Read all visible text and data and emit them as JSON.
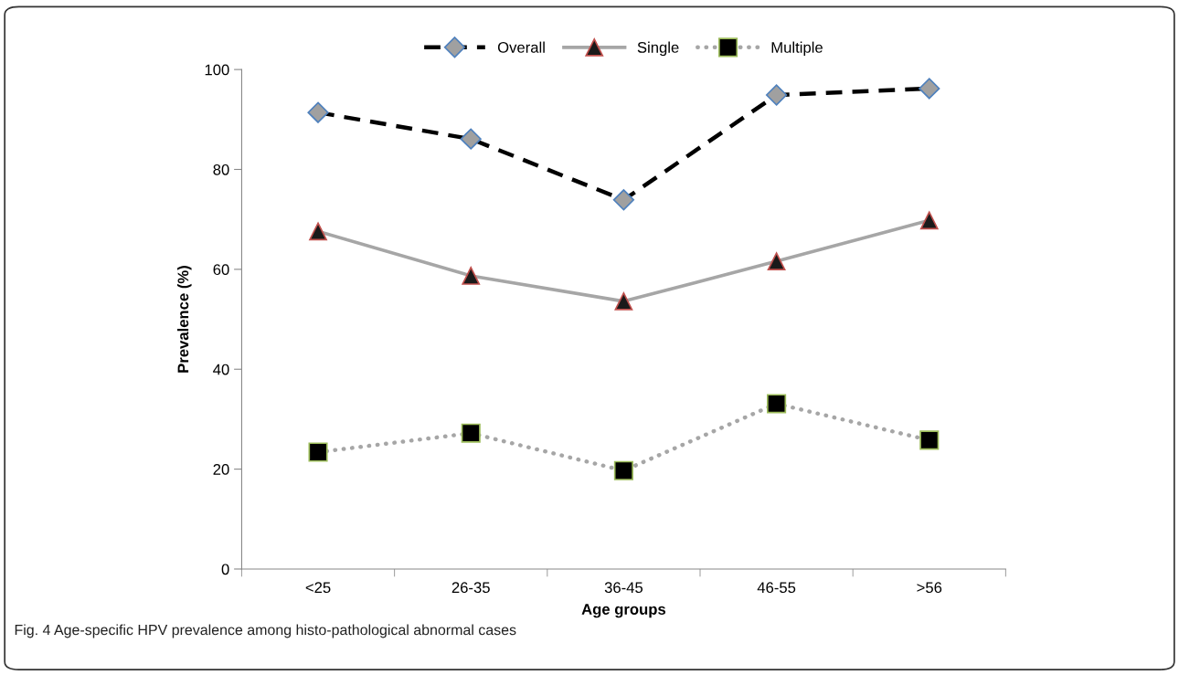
{
  "chart_data": {
    "type": "line",
    "xlabel": "Age groups",
    "ylabel": "Prevalence (%)",
    "categories": [
      "<25",
      "26-35",
      "36-45",
      "46-55",
      ">56"
    ],
    "series": [
      {
        "name": "Overall",
        "color": "#000000",
        "values": [
          91.4,
          86.1,
          73.9,
          94.9,
          96.2
        ],
        "marker": "diamond",
        "line_style": "dashed"
      },
      {
        "name": "Single",
        "color": "#a6a6a6",
        "values": [
          67.6,
          58.7,
          53.6,
          61.6,
          69.8
        ],
        "marker": "triangle",
        "line_style": "solid"
      },
      {
        "name": "Multiple",
        "color": "#a6a6a6",
        "values": [
          23.4,
          27.2,
          19.7,
          33.1,
          25.8
        ],
        "marker": "square",
        "line_style": "dotted"
      }
    ],
    "ylim": [
      0,
      100
    ],
    "yticks": [
      0,
      20,
      40,
      60,
      80,
      100
    ],
    "grid": false,
    "legend": "top",
    "annotations": [
      "Fig. 4 Age-specific HPV prevalence among histo-pathological abnormal cases"
    ]
  }
}
